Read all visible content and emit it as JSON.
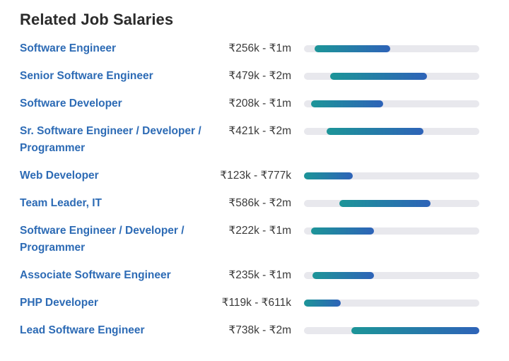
{
  "header": {
    "title": "Related Job Salaries"
  },
  "colors": {
    "link": "#2d6bb5",
    "track": "#e8e8ed",
    "bar_start": "#1c9598",
    "bar_end": "#2e63b8"
  },
  "jobs": [
    {
      "title": "Software Engineer",
      "range": "₹256k - ₹1m",
      "bar_start": 0.06,
      "bar_end": 0.49
    },
    {
      "title": "Senior Software Engineer",
      "range": "₹479k - ₹2m",
      "bar_start": 0.15,
      "bar_end": 0.7
    },
    {
      "title": "Software Developer",
      "range": "₹208k - ₹1m",
      "bar_start": 0.04,
      "bar_end": 0.45
    },
    {
      "title": "Sr. Software Engineer / Developer / Programmer",
      "range": "₹421k - ₹2m",
      "bar_start": 0.13,
      "bar_end": 0.68
    },
    {
      "title": "Web Developer",
      "range": "₹123k - ₹777k",
      "bar_start": 0.0,
      "bar_end": 0.28
    },
    {
      "title": "Team Leader, IT",
      "range": "₹586k - ₹2m",
      "bar_start": 0.2,
      "bar_end": 0.72
    },
    {
      "title": "Software Engineer / Developer / Programmer",
      "range": "₹222k - ₹1m",
      "bar_start": 0.04,
      "bar_end": 0.4
    },
    {
      "title": "Associate Software Engineer",
      "range": "₹235k - ₹1m",
      "bar_start": 0.05,
      "bar_end": 0.4
    },
    {
      "title": "PHP Developer",
      "range": "₹119k - ₹611k",
      "bar_start": 0.0,
      "bar_end": 0.21
    },
    {
      "title": "Lead Software Engineer",
      "range": "₹738k - ₹2m",
      "bar_start": 0.27,
      "bar_end": 1.0
    }
  ]
}
